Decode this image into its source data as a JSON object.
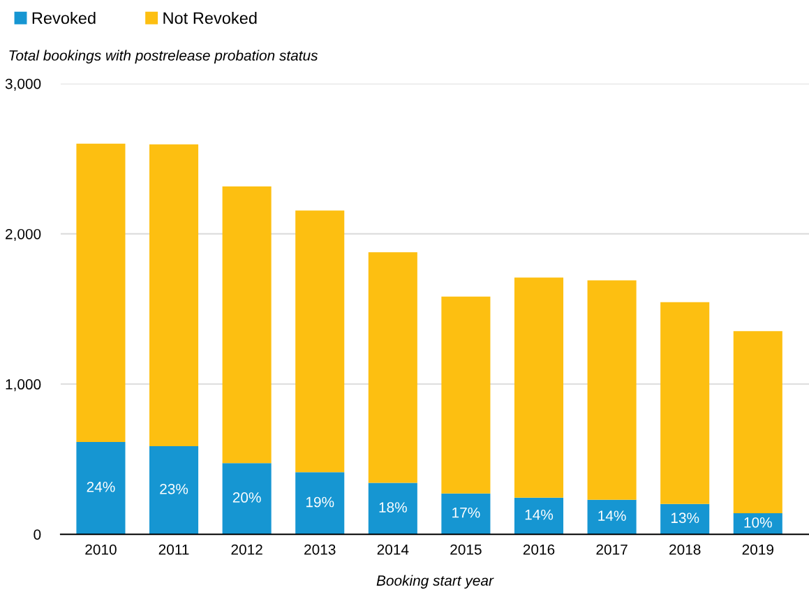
{
  "chart_data": {
    "type": "bar",
    "stacked": true,
    "ylabel": "Total bookings with postrelease probation status",
    "xlabel": "Booking start year",
    "categories": [
      "2010",
      "2011",
      "2012",
      "2013",
      "2014",
      "2015",
      "2016",
      "2017",
      "2018",
      "2019"
    ],
    "series": [
      {
        "name": "Revoked",
        "color": "#1696d2",
        "values": [
          615,
          587,
          474,
          413,
          343,
          272,
          244,
          230,
          202,
          141
        ]
      },
      {
        "name": "Not Revoked",
        "color": "#fdbf11",
        "values": [
          1985,
          2008,
          1841,
          1742,
          1535,
          1310,
          1465,
          1460,
          1343,
          1211
        ]
      }
    ],
    "ylim": [
      0,
      3000
    ],
    "yticks": [
      0,
      {
        "value": 1000,
        "label": "1,000"
      },
      {
        "value": 2000,
        "label": "2,000"
      },
      {
        "value": 3000,
        "label": "3,000"
      }
    ],
    "annotations": [
      "24%",
      "23%",
      "20%",
      "19%",
      "18%",
      "17%",
      "14%",
      "14%",
      "13%",
      "10%"
    ],
    "grid": "y",
    "legend": "top left"
  }
}
